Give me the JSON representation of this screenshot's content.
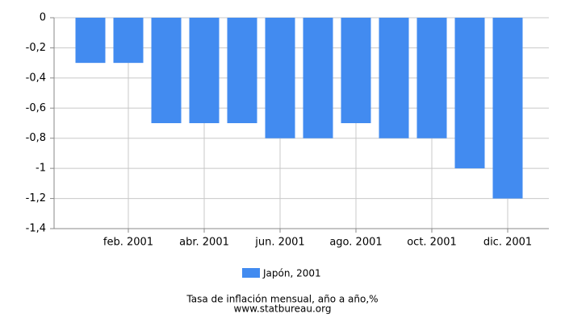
{
  "chart_data": {
    "type": "bar",
    "title": "Tasa de inflación mensual, año a año,%",
    "source": "www.statbureau.org",
    "categories": [
      null,
      "feb. 2001",
      null,
      "abr. 2001",
      null,
      "jun. 2001",
      null,
      "ago. 2001",
      null,
      "oct. 2001",
      null,
      "dic. 2001"
    ],
    "series": [
      {
        "name": "Japón, 2001",
        "color": "#428bf0",
        "values": [
          -0.3,
          -0.3,
          -0.7,
          -0.7,
          -0.7,
          -0.8,
          -0.8,
          -0.7,
          -0.8,
          -0.8,
          -1.0,
          -1.2
        ]
      }
    ],
    "ylim": [
      -1.4,
      0
    ],
    "yticks": [
      0,
      {
        "value": -0.2,
        "label": "-0,2"
      },
      {
        "value": -0.4,
        "label": "-0,4"
      },
      {
        "value": -0.6,
        "label": "-0,6"
      },
      {
        "value": -0.8,
        "label": "-0,8"
      },
      -1,
      {
        "value": -1.2,
        "label": "-1,2"
      },
      {
        "value": -1.4,
        "label": "-1,4"
      }
    ],
    "grid": true
  }
}
